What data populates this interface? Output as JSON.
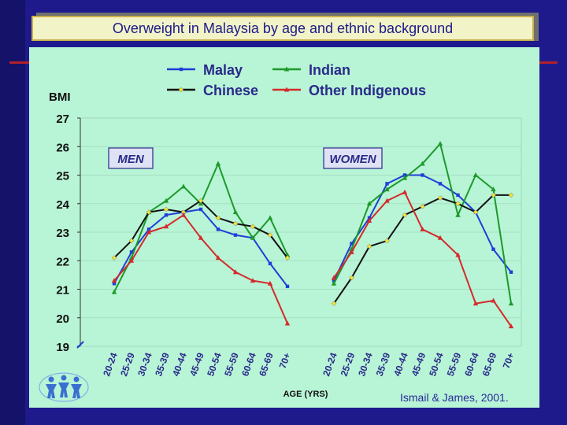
{
  "title": "Overweight in Malaysia by age and ethnic background",
  "credit": "Ismail & James, 2001.",
  "colors": {
    "Malay": "#1f3fd6",
    "Indian": "#1c9a2a",
    "Chinese": "#111111",
    "Other Indigenous": "#d42a2a"
  },
  "chart_data": {
    "type": "line",
    "ylabel": "BMI",
    "xlabel": "AGE (YRS)",
    "ylim": [
      19,
      27
    ],
    "yticks": [
      19,
      20,
      21,
      22,
      23,
      24,
      25,
      26,
      27
    ],
    "categories": [
      "20-24",
      "25-29",
      "30-34",
      "35-39",
      "40-44",
      "45-49",
      "50-54",
      "55-59",
      "60-64",
      "65-69",
      "70+"
    ],
    "legend_position": "top",
    "panels": [
      {
        "label": "MEN",
        "series": [
          {
            "name": "Malay",
            "values": [
              21.2,
              22.3,
              23.1,
              23.6,
              23.7,
              23.8,
              23.1,
              22.9,
              22.8,
              21.9,
              21.1
            ]
          },
          {
            "name": "Indian",
            "values": [
              20.9,
              22.1,
              23.7,
              24.1,
              24.6,
              24.0,
              25.4,
              23.7,
              22.8,
              23.5,
              22.2
            ]
          },
          {
            "name": "Chinese",
            "values": [
              22.1,
              22.7,
              23.7,
              23.8,
              23.7,
              24.1,
              23.5,
              23.3,
              23.2,
              22.9,
              22.1
            ]
          },
          {
            "name": "Other Indigenous",
            "values": [
              21.3,
              22.0,
              23.0,
              23.2,
              23.6,
              22.8,
              22.1,
              21.6,
              21.3,
              21.2,
              19.8
            ]
          }
        ]
      },
      {
        "label": "WOMEN",
        "series": [
          {
            "name": "Malay",
            "values": [
              21.3,
              22.6,
              23.5,
              24.7,
              25.0,
              25.0,
              24.7,
              24.3,
              23.7,
              22.4,
              21.6
            ]
          },
          {
            "name": "Indian",
            "values": [
              21.2,
              22.4,
              24.0,
              24.5,
              24.9,
              25.4,
              26.1,
              23.6,
              25.0,
              24.5,
              20.5
            ]
          },
          {
            "name": "Chinese",
            "values": [
              20.5,
              21.4,
              22.5,
              22.7,
              23.6,
              23.9,
              24.2,
              24.0,
              23.7,
              24.3,
              24.3
            ]
          },
          {
            "name": "Other Indigenous",
            "values": [
              21.4,
              22.3,
              23.4,
              24.1,
              24.4,
              23.1,
              22.8,
              22.2,
              20.5,
              20.6,
              19.7
            ]
          }
        ]
      }
    ]
  }
}
